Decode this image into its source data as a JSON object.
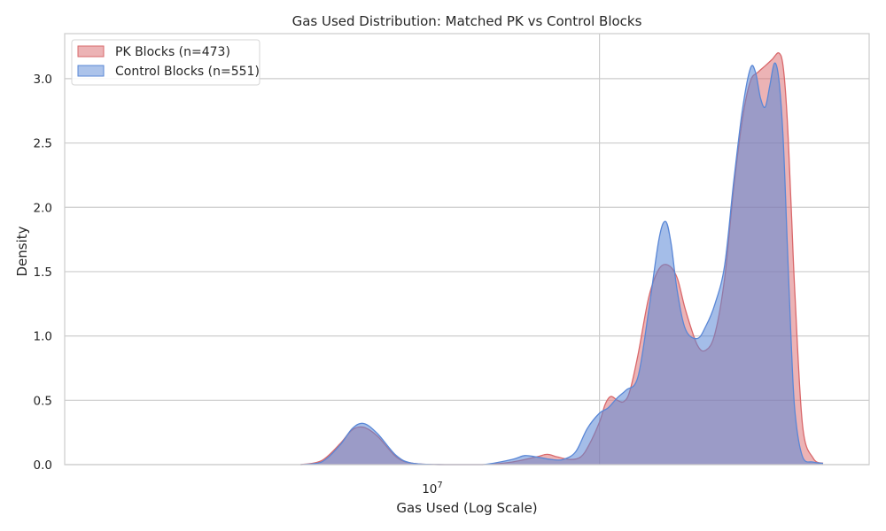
{
  "chart_data": {
    "type": "area",
    "title": "Gas Used Distribution: Matched PK vs Control Blocks",
    "xlabel": "Gas Used (Log Scale)",
    "ylabel": "Density",
    "x_scale": "log",
    "x_tick": {
      "base": "10",
      "exp": "7",
      "value": 10000000
    },
    "ylim": [
      0,
      3.35
    ],
    "yticks": [
      "0.0",
      "0.5",
      "1.0",
      "1.5",
      "2.0",
      "2.5",
      "3.0"
    ],
    "grid": true,
    "legend_placement": "top-left",
    "series": [
      {
        "name": "PK Blocks (n=473)",
        "color": "#d9686b",
        "x": [
          1300000,
          1500000,
          1700000,
          1850000,
          2000000,
          2200000,
          2500000,
          2800000,
          3500000,
          4500000,
          5500000,
          6500000,
          7000000,
          7500000,
          8200000,
          8800000,
          9300000,
          10000000,
          10400000,
          10800000,
          11300000,
          11800000,
          12300000,
          13000000,
          14000000,
          15000000,
          16000000,
          17000000,
          18000000,
          19500000,
          20700000,
          22000000,
          23500000,
          25000000,
          26500000,
          28000000,
          29500000,
          31000000,
          32500000,
          34000000,
          35000000,
          36000000,
          37000000,
          38000000,
          40000000,
          43000000,
          46000000
        ],
        "values": [
          0.0,
          0.03,
          0.16,
          0.27,
          0.29,
          0.22,
          0.06,
          0.01,
          0.0,
          0.0,
          0.02,
          0.06,
          0.08,
          0.06,
          0.04,
          0.06,
          0.15,
          0.33,
          0.47,
          0.53,
          0.5,
          0.49,
          0.57,
          0.85,
          1.3,
          1.52,
          1.55,
          1.45,
          1.2,
          0.93,
          0.89,
          1.02,
          1.45,
          2.15,
          2.68,
          2.98,
          3.05,
          3.1,
          3.15,
          3.2,
          3.1,
          2.7,
          2.0,
          1.3,
          0.3,
          0.05,
          0.01
        ]
      },
      {
        "name": "Control Blocks (n=551)",
        "color": "#5a87d6",
        "x": [
          1300000,
          1500000,
          1700000,
          1850000,
          2000000,
          2200000,
          2500000,
          2800000,
          3500000,
          4500000,
          5500000,
          6000000,
          6500000,
          7200000,
          7800000,
          8500000,
          9200000,
          10000000,
          10600000,
          11300000,
          12000000,
          13000000,
          14000000,
          15000000,
          15700000,
          16300000,
          17000000,
          18000000,
          19500000,
          20700000,
          22000000,
          23500000,
          25000000,
          26500000,
          28000000,
          29000000,
          30000000,
          31000000,
          32000000,
          33000000,
          34000000,
          35000000,
          36000000,
          37000000,
          38000000,
          40000000,
          43000000,
          46000000
        ],
        "values": [
          0.0,
          0.02,
          0.15,
          0.28,
          0.32,
          0.24,
          0.07,
          0.01,
          0.0,
          0.0,
          0.04,
          0.07,
          0.06,
          0.04,
          0.04,
          0.1,
          0.28,
          0.4,
          0.44,
          0.52,
          0.58,
          0.68,
          1.2,
          1.75,
          1.89,
          1.72,
          1.35,
          1.05,
          0.98,
          1.08,
          1.25,
          1.55,
          2.2,
          2.75,
          3.08,
          3.05,
          2.85,
          2.78,
          2.95,
          3.12,
          3.0,
          2.55,
          1.75,
          0.95,
          0.4,
          0.06,
          0.02,
          0.01
        ]
      }
    ]
  }
}
